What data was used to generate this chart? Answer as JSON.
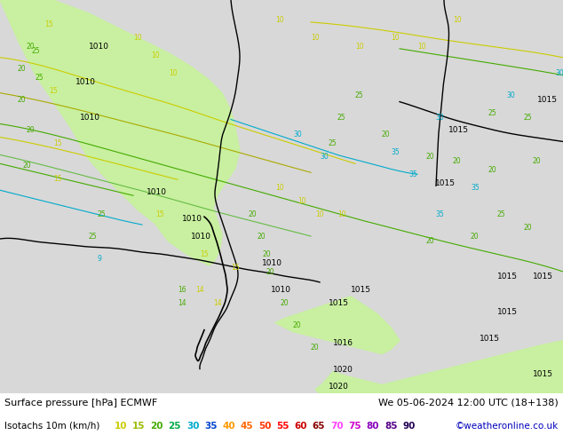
{
  "title_line1": "Surface pressure [hPa] ECMWF",
  "title_line2": "Isotachs 10m (km/h)",
  "date_str": "We 05-06-2024 12:00 UTC (18+138)",
  "copyright": "©weatheronline.co.uk",
  "bg_main": "#e8e8e8",
  "land_color": "#c8f0a0",
  "bottom_bg": "#ffffff",
  "isotach_values": [
    10,
    15,
    20,
    25,
    30,
    35,
    40,
    45,
    50,
    55,
    60,
    65,
    70,
    75,
    80,
    85,
    90
  ],
  "isotach_colors": [
    "#cccc00",
    "#99bb00",
    "#44aa00",
    "#00aa44",
    "#00aacc",
    "#0044cc",
    "#ff9900",
    "#ff6600",
    "#ff3300",
    "#ff0000",
    "#cc0000",
    "#880000",
    "#ff44ff",
    "#cc00cc",
    "#8800bb",
    "#550088",
    "#220055"
  ],
  "label_fontsize": 7.5,
  "title_fontsize": 8.0,
  "date_fontsize": 8.0
}
